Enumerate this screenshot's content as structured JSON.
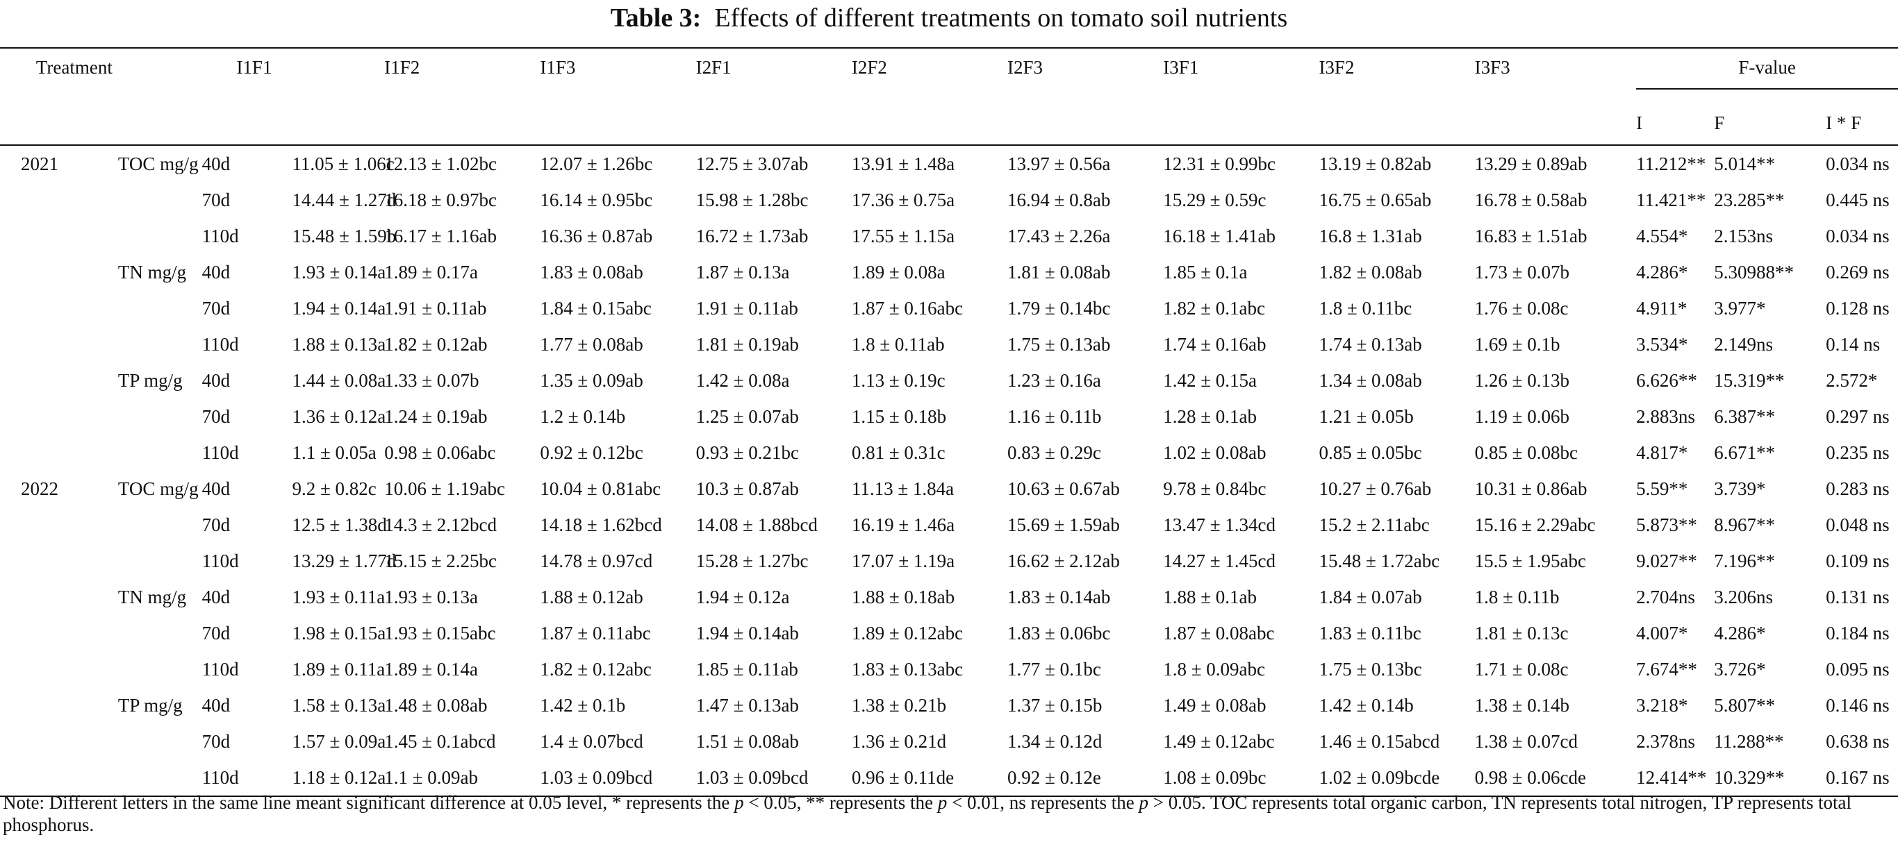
{
  "caption": {
    "label": "Table 3:",
    "text": "Effects of different treatments on tomato soil nutrients"
  },
  "header": {
    "treatment": "Treatment",
    "columns": [
      "I1F1",
      "I1F2",
      "I1F3",
      "I2F1",
      "I2F2",
      "I2F3",
      "I3F1",
      "I3F2",
      "I3F3"
    ],
    "fvalue": "F-value",
    "fvalue_sub": [
      "I",
      "F",
      "I * F"
    ]
  },
  "rows": [
    {
      "year": "2021",
      "nutrient": "TOC mg/g",
      "day": "40d",
      "vals": [
        "11.05 ± 1.06c",
        "12.13 ± 1.02bc",
        "12.07 ± 1.26bc",
        "12.75 ± 3.07ab",
        "13.91 ± 1.48a",
        "13.97 ± 0.56a",
        "12.31 ± 0.99bc",
        "13.19 ± 0.82ab",
        "13.29 ± 0.89ab"
      ],
      "f": [
        "11.212**",
        "5.014**",
        "0.034 ns"
      ]
    },
    {
      "year": "",
      "nutrient": "",
      "day": "70d",
      "vals": [
        "14.44 ± 1.27d",
        "16.18 ± 0.97bc",
        "16.14 ± 0.95bc",
        "15.98 ± 1.28bc",
        "17.36 ± 0.75a",
        "16.94 ± 0.8ab",
        "15.29 ± 0.59c",
        "16.75 ± 0.65ab",
        "16.78 ± 0.58ab"
      ],
      "f": [
        "11.421**",
        "23.285**",
        "0.445 ns"
      ]
    },
    {
      "year": "",
      "nutrient": "",
      "day": "110d",
      "vals": [
        "15.48 ± 1.59b",
        "16.17 ± 1.16ab",
        "16.36 ± 0.87ab",
        "16.72 ± 1.73ab",
        "17.55 ± 1.15a",
        "17.43 ± 2.26a",
        "16.18 ± 1.41ab",
        "16.8 ± 1.31ab",
        "16.83 ± 1.51ab"
      ],
      "f": [
        "4.554*",
        "2.153ns",
        "0.034 ns"
      ]
    },
    {
      "year": "",
      "nutrient": "TN mg/g",
      "day": "40d",
      "vals": [
        "1.93 ± 0.14a",
        "1.89 ± 0.17a",
        "1.83 ± 0.08ab",
        "1.87 ± 0.13a",
        "1.89 ± 0.08a",
        "1.81 ± 0.08ab",
        "1.85 ± 0.1a",
        "1.82 ± 0.08ab",
        "1.73 ± 0.07b"
      ],
      "f": [
        "4.286*",
        "5.30988**",
        "0.269 ns"
      ]
    },
    {
      "year": "",
      "nutrient": "",
      "day": "70d",
      "vals": [
        "1.94 ± 0.14a",
        "1.91 ± 0.11ab",
        "1.84 ± 0.15abc",
        "1.91 ± 0.11ab",
        "1.87 ± 0.16abc",
        "1.79 ± 0.14bc",
        "1.82 ± 0.1abc",
        "1.8 ± 0.11bc",
        "1.76 ± 0.08c"
      ],
      "f": [
        "4.911*",
        "3.977*",
        "0.128 ns"
      ]
    },
    {
      "year": "",
      "nutrient": "",
      "day": "110d",
      "vals": [
        "1.88 ± 0.13a",
        "1.82 ± 0.12ab",
        "1.77 ± 0.08ab",
        "1.81 ± 0.19ab",
        "1.8 ± 0.11ab",
        "1.75 ± 0.13ab",
        "1.74 ± 0.16ab",
        "1.74 ± 0.13ab",
        "1.69 ± 0.1b"
      ],
      "f": [
        "3.534*",
        "2.149ns",
        "0.14 ns"
      ]
    },
    {
      "year": "",
      "nutrient": "TP mg/g",
      "day": "40d",
      "vals": [
        "1.44 ± 0.08a",
        "1.33 ± 0.07b",
        "1.35 ± 0.09ab",
        "1.42 ± 0.08a",
        "1.13 ± 0.19c",
        "1.23 ± 0.16a",
        "1.42 ± 0.15a",
        "1.34 ± 0.08ab",
        "1.26 ± 0.13b"
      ],
      "f": [
        "6.626**",
        "15.319**",
        "2.572*"
      ]
    },
    {
      "year": "",
      "nutrient": "",
      "day": "70d",
      "vals": [
        "1.36 ± 0.12a",
        "1.24 ± 0.19ab",
        "1.2 ± 0.14b",
        "1.25 ± 0.07ab",
        "1.15 ± 0.18b",
        "1.16 ± 0.11b",
        "1.28 ± 0.1ab",
        "1.21 ± 0.05b",
        "1.19 ± 0.06b"
      ],
      "f": [
        "2.883ns",
        "6.387**",
        "0.297 ns"
      ]
    },
    {
      "year": "",
      "nutrient": "",
      "day": "110d",
      "vals": [
        "1.1 ± 0.05a",
        "0.98 ± 0.06abc",
        "0.92 ± 0.12bc",
        "0.93 ± 0.21bc",
        "0.81 ± 0.31c",
        "0.83 ± 0.29c",
        "1.02 ± 0.08ab",
        "0.85 ± 0.05bc",
        "0.85 ± 0.08bc"
      ],
      "f": [
        "4.817*",
        "6.671**",
        "0.235 ns"
      ]
    },
    {
      "year": "2022",
      "nutrient": "TOC mg/g",
      "day": "40d",
      "vals": [
        "9.2 ± 0.82c",
        "10.06 ± 1.19abc",
        "10.04 ± 0.81abc",
        "10.3 ± 0.87ab",
        "11.13 ± 1.84a",
        "10.63 ± 0.67ab",
        "9.78 ± 0.84bc",
        "10.27 ± 0.76ab",
        "10.31 ± 0.86ab"
      ],
      "f": [
        "5.59**",
        "3.739*",
        "0.283 ns"
      ]
    },
    {
      "year": "",
      "nutrient": "",
      "day": "70d",
      "vals": [
        "12.5 ± 1.38d",
        "14.3 ± 2.12bcd",
        "14.18 ± 1.62bcd",
        "14.08 ± 1.88bcd",
        "16.19 ± 1.46a",
        "15.69 ± 1.59ab",
        "13.47 ± 1.34cd",
        "15.2 ± 2.11abc",
        "15.16 ± 2.29abc"
      ],
      "f": [
        "5.873**",
        "8.967**",
        "0.048 ns"
      ]
    },
    {
      "year": "",
      "nutrient": "",
      "day": "110d",
      "vals": [
        "13.29 ± 1.77d",
        "15.15 ± 2.25bc",
        "14.78 ± 0.97cd",
        "15.28 ± 1.27bc",
        "17.07 ± 1.19a",
        "16.62 ± 2.12ab",
        "14.27 ± 1.45cd",
        "15.48 ± 1.72abc",
        "15.5 ± 1.95abc"
      ],
      "f": [
        "9.027**",
        "7.196**",
        "0.109 ns"
      ]
    },
    {
      "year": "",
      "nutrient": "TN mg/g",
      "day": "40d",
      "vals": [
        "1.93 ± 0.11a",
        "1.93 ± 0.13a",
        "1.88 ± 0.12ab",
        "1.94 ± 0.12a",
        "1.88 ± 0.18ab",
        "1.83 ± 0.14ab",
        "1.88 ± 0.1ab",
        "1.84 ± 0.07ab",
        "1.8 ± 0.11b"
      ],
      "f": [
        "2.704ns",
        "3.206ns",
        "0.131 ns"
      ]
    },
    {
      "year": "",
      "nutrient": "",
      "day": "70d",
      "vals": [
        "1.98 ± 0.15a",
        "1.93 ± 0.15abc",
        "1.87 ± 0.11abc",
        "1.94 ± 0.14ab",
        "1.89 ± 0.12abc",
        "1.83 ± 0.06bc",
        "1.87 ± 0.08abc",
        "1.83 ± 0.11bc",
        "1.81 ± 0.13c"
      ],
      "f": [
        "4.007*",
        "4.286*",
        "0.184 ns"
      ]
    },
    {
      "year": "",
      "nutrient": "",
      "day": "110d",
      "vals": [
        "1.89 ± 0.11a",
        "1.89 ± 0.14a",
        "1.82 ± 0.12abc",
        "1.85 ± 0.11ab",
        "1.83 ± 0.13abc",
        "1.77 ± 0.1bc",
        "1.8 ± 0.09abc",
        "1.75 ± 0.13bc",
        "1.71 ± 0.08c"
      ],
      "f": [
        "7.674**",
        "3.726*",
        "0.095 ns"
      ]
    },
    {
      "year": "",
      "nutrient": "TP mg/g",
      "day": "40d",
      "vals": [
        "1.58 ± 0.13a",
        "1.48 ± 0.08ab",
        "1.42 ± 0.1b",
        "1.47 ± 0.13ab",
        "1.38 ± 0.21b",
        "1.37 ± 0.15b",
        "1.49 ± 0.08ab",
        "1.42 ± 0.14b",
        "1.38 ± 0.14b"
      ],
      "f": [
        "3.218*",
        "5.807**",
        "0.146 ns"
      ]
    },
    {
      "year": "",
      "nutrient": "",
      "day": "70d",
      "vals": [
        "1.57 ± 0.09a",
        "1.45 ± 0.1abcd",
        "1.4 ± 0.07bcd",
        "1.51 ± 0.08ab",
        "1.36 ± 0.21d",
        "1.34 ± 0.12d",
        "1.49 ± 0.12abc",
        "1.46 ± 0.15abcd",
        "1.38 ± 0.07cd"
      ],
      "f": [
        "2.378ns",
        "11.288**",
        "0.638 ns"
      ]
    },
    {
      "year": "",
      "nutrient": "",
      "day": "110d",
      "vals": [
        "1.18 ± 0.12a",
        "1.1 ± 0.09ab",
        "1.03 ± 0.09bcd",
        "1.03 ± 0.09bcd",
        "0.96 ± 0.11de",
        "0.92 ± 0.12e",
        "1.08 ± 0.09bc",
        "1.02 ± 0.09bcde",
        "0.98 ± 0.06cde"
      ],
      "f": [
        "12.414**",
        "10.329**",
        "0.167 ns"
      ]
    }
  ],
  "note": {
    "part1": "Note: Different letters in the same line meant significant difference at 0.05 level, * represents the ",
    "p1": "p",
    "part2": " < 0.05, ** represents the ",
    "p2": "p",
    "part3": " < 0.01, ns represents the ",
    "p3": "p",
    "part4": " > 0.05. TOC represents total organic carbon, TN represents total nitrogen, TP represents total phosphorus."
  }
}
